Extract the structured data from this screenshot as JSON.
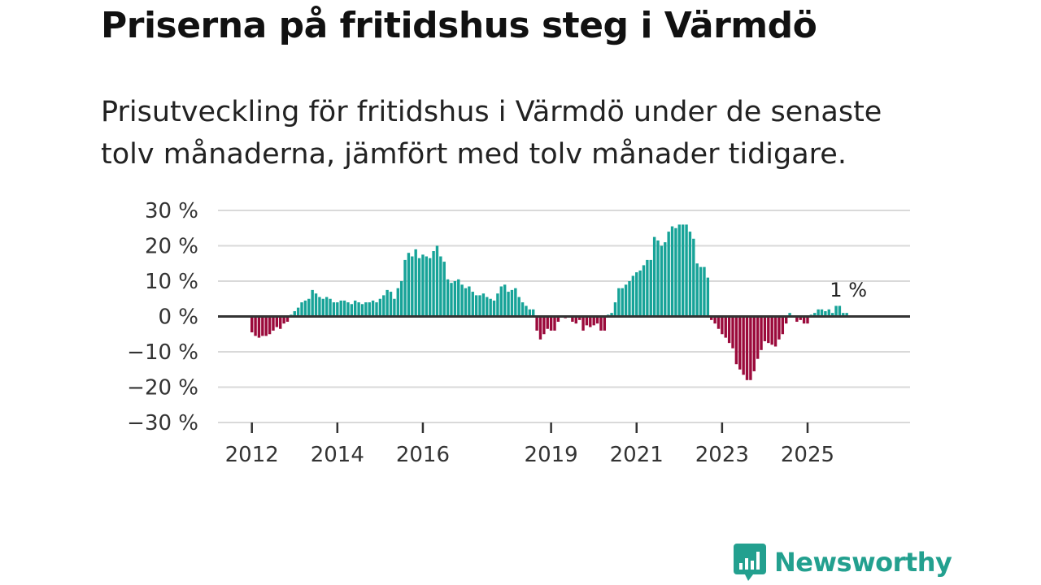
{
  "header": {
    "title": "Priserna på fritidshus steg i Värmdö",
    "subtitle": "Prisutveckling för fritidshus i Värmdö under de senaste tolv månaderna, jämfört med tolv månader tidigare."
  },
  "colors": {
    "positive": "#17a398",
    "negative": "#9b0a3b",
    "zero_line": "#333333",
    "grid": "#d9d9d9",
    "brand": "#23a08f"
  },
  "brand": {
    "name": "Newsworthy",
    "logo_icon": "bar-chart-speech-bubble-icon"
  },
  "chart_data": {
    "type": "bar",
    "title": "Priserna på fritidshus steg i Värmdö",
    "xlabel": "",
    "ylabel": "",
    "ylim": [
      -30,
      30
    ],
    "yticks": [
      30,
      20,
      10,
      0,
      -10,
      -20,
      -30
    ],
    "ytick_labels": [
      "30 %",
      "20 %",
      "10 %",
      "0 %",
      "−10 %",
      "−20 %",
      "−30 %"
    ],
    "xticks": [
      "2012",
      "2014",
      "2016",
      "2019",
      "2021",
      "2023",
      "2025"
    ],
    "x_start": "2012-01",
    "unit": "%",
    "annotation": {
      "label": "1 %",
      "target": "last"
    },
    "values": [
      -4.5,
      -5.5,
      -6,
      -5.5,
      -5.5,
      -5,
      -4,
      -3,
      -3.5,
      -2,
      -1.5,
      0.5,
      1.5,
      2.5,
      4,
      4.5,
      5,
      7.5,
      6.5,
      5.5,
      5,
      5.5,
      5,
      4,
      4,
      4.5,
      4.5,
      4,
      3.5,
      4.5,
      4,
      3.5,
      4,
      4,
      4.5,
      4,
      5,
      6,
      7.5,
      7,
      5,
      8,
      10,
      16,
      18,
      17,
      19,
      16.5,
      17.5,
      17,
      16.5,
      18.5,
      20,
      17,
      15.5,
      10.5,
      9.5,
      10,
      10.5,
      9,
      8,
      8.5,
      7,
      6,
      6,
      6.5,
      5.5,
      5,
      4.5,
      6.5,
      8.5,
      9,
      7,
      7.5,
      8,
      5.5,
      4,
      3,
      2,
      2,
      -4,
      -6.5,
      -5,
      -3.5,
      -4,
      -4,
      -1.5,
      0,
      -0.5,
      0,
      -1.5,
      -2,
      -1,
      -4,
      -2.5,
      -3,
      -2.5,
      -2,
      -4,
      -4,
      0.5,
      1,
      4,
      8,
      8,
      9,
      10,
      11.5,
      12.5,
      13,
      14.5,
      16,
      16,
      22.5,
      21.5,
      20,
      21,
      24,
      25.5,
      25,
      26,
      26,
      26,
      24,
      22,
      15,
      14,
      14,
      11,
      -1,
      -2,
      -3.5,
      -5,
      -6,
      -7.5,
      -9,
      -13.5,
      -15,
      -16.5,
      -18,
      -18,
      -15.5,
      -12,
      -9.5,
      -7,
      -7.5,
      -8,
      -8.5,
      -6.5,
      -5,
      -2,
      1,
      0,
      -1.5,
      -1,
      -2,
      -2,
      0.5,
      1,
      2,
      2,
      1.5,
      2,
      1,
      3,
      3,
      1,
      1
    ]
  }
}
